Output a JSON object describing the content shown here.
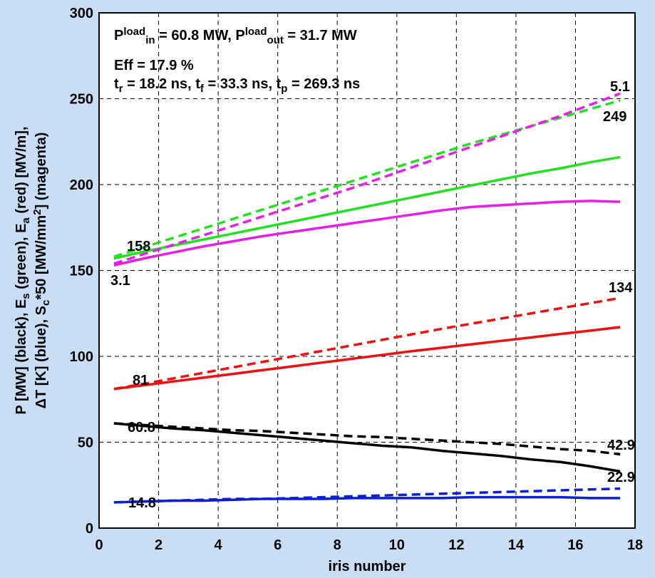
{
  "chart_data": {
    "type": "line",
    "xlabel": "iris number",
    "ylabel_lines": [
      [
        {
          "text": "P [MW] (black), E"
        },
        {
          "sub": "s"
        },
        {
          "text": " (green), E"
        },
        {
          "sub": "a"
        },
        {
          "text": " (red) [MV/m],"
        }
      ],
      [
        {
          "text": "ΔT [K] (blue), S"
        },
        {
          "sub": "c"
        },
        {
          "text": "*50 [MW/mm"
        },
        {
          "sup": "2"
        },
        {
          "text": "] (magenta)"
        }
      ]
    ],
    "info_lines": [
      [
        {
          "text": "P"
        },
        {
          "sup": "load"
        },
        {
          "sub": "in"
        },
        {
          "text": " =  60.8 MW, P"
        },
        {
          "sup": "load"
        },
        {
          "sub": "out"
        },
        {
          "text": " =  31.7 MW"
        }
      ],
      [
        {
          "text": "Eff = 17.9 %"
        }
      ],
      [
        {
          "text": "t"
        },
        {
          "sub": "r"
        },
        {
          "text": " = 18.2 ns, t"
        },
        {
          "sub": "f"
        },
        {
          "text": " = 33.3 ns, t"
        },
        {
          "sub": "p"
        },
        {
          "text": " = 269.3 ns"
        }
      ]
    ],
    "annotations": [
      "5.1",
      "249",
      "158",
      "3.1",
      "134",
      "81",
      "60.8",
      "42.9",
      "22.9",
      "14.8"
    ],
    "x": [
      0.5,
      1.5,
      2.5,
      3.5,
      4.5,
      5.5,
      6.5,
      7.5,
      8.5,
      9.5,
      10.5,
      11.5,
      12.5,
      13.5,
      14.5,
      15.5,
      16.5,
      17.5
    ],
    "xlim": [
      0,
      18
    ],
    "xticks": [
      0,
      2,
      4,
      6,
      8,
      10,
      12,
      14,
      16,
      18
    ],
    "ylim": [
      0,
      300
    ],
    "yticks": [
      0,
      50,
      100,
      150,
      200,
      250,
      300
    ],
    "grid": true,
    "series": [
      {
        "color": "#000000",
        "dash": false,
        "values": [
          61,
          59.5,
          58,
          57,
          55.5,
          54,
          52.5,
          51,
          49.5,
          48,
          47,
          45,
          43.5,
          42,
          40,
          38.5,
          36,
          33
        ]
      },
      {
        "color": "#000000",
        "dash": true,
        "values": [
          61,
          60,
          59,
          58,
          57,
          56.5,
          55.5,
          54.5,
          53.5,
          53,
          52,
          51,
          50,
          49,
          47.5,
          46,
          45,
          43
        ]
      },
      {
        "color": "#0a1fd6",
        "dash": false,
        "values": [
          15,
          15.5,
          16,
          16,
          16.5,
          17,
          17,
          17,
          17.5,
          17.5,
          17.5,
          17.5,
          18,
          18,
          18,
          18,
          17.5,
          17.5
        ]
      },
      {
        "color": "#0a1fd6",
        "dash": true,
        "values": [
          15,
          15.5,
          16,
          16.5,
          17,
          17,
          17.5,
          18,
          18.5,
          19,
          19.5,
          20,
          20.5,
          21,
          21.5,
          22,
          22.5,
          23
        ]
      },
      {
        "color": "#f01010",
        "dash": false,
        "values": [
          81,
          83.2,
          85.4,
          87.6,
          89.8,
          92,
          94.2,
          96.4,
          98.6,
          100.8,
          103,
          105,
          107,
          109,
          111,
          113,
          115,
          117
        ]
      },
      {
        "color": "#f01010",
        "dash": true,
        "values": [
          81,
          84,
          87.2,
          90.4,
          93.6,
          96.8,
          100,
          103.2,
          106.4,
          109.6,
          112.8,
          116,
          119,
          122,
          125,
          128,
          131,
          134
        ]
      },
      {
        "color": "#22e022",
        "dash": false,
        "values": [
          157,
          161,
          164.5,
          168,
          171.5,
          175,
          178.5,
          182,
          185.5,
          189,
          192.5,
          196,
          199.5,
          203,
          206.5,
          209.5,
          213,
          216
        ]
      },
      {
        "color": "#22e022",
        "dash": true,
        "values": [
          158,
          163.5,
          169,
          174.5,
          180,
          185.5,
          191,
          196.5,
          202,
          207.5,
          213,
          218.5,
          224,
          229,
          234,
          239,
          244,
          249
        ]
      },
      {
        "color": "#e81ee8",
        "dash": false,
        "values": [
          153,
          157,
          160.5,
          164,
          167,
          170,
          172.5,
          175,
          177.5,
          180,
          182.5,
          185,
          187,
          188,
          189,
          190,
          190.5,
          190
        ]
      },
      {
        "color": "#e81ee8",
        "dash": true,
        "values": [
          154,
          159.5,
          165,
          170.5,
          176,
          181.5,
          187,
          192.5,
          198,
          204,
          210,
          216,
          222,
          228,
          234,
          240,
          246.5,
          253
        ]
      }
    ]
  }
}
